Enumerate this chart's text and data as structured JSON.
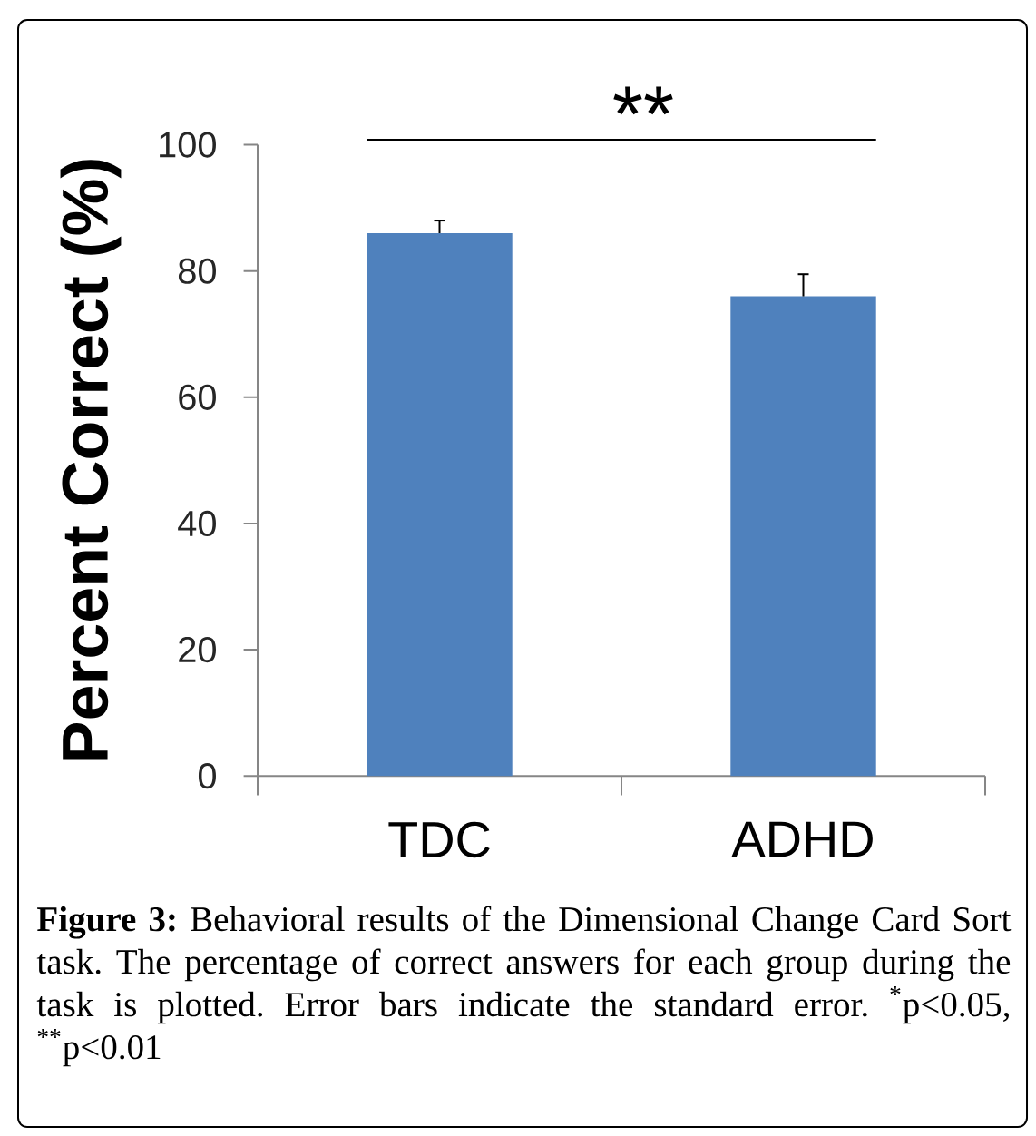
{
  "chart_data": {
    "type": "bar",
    "categories": [
      "TDC",
      "ADHD"
    ],
    "values": [
      86,
      76
    ],
    "color": "#4f81bd",
    "errors": [
      [
        86,
        88
      ],
      [
        76,
        79.5
      ]
    ],
    "ylabel": "Percent Correct (%)",
    "ylim": [
      0,
      100
    ],
    "yticks": [
      0,
      20,
      40,
      60,
      80,
      100
    ],
    "annotations": [
      "**",
      "**Figure 3:** Behavioral results of the Dimensional Change Card Sort task. The percentage of correct answers for each group during the task is plotted. Error bars indicate the standard error. $^{*}$p<0.05, $^{**}$p<0.01"
    ]
  }
}
